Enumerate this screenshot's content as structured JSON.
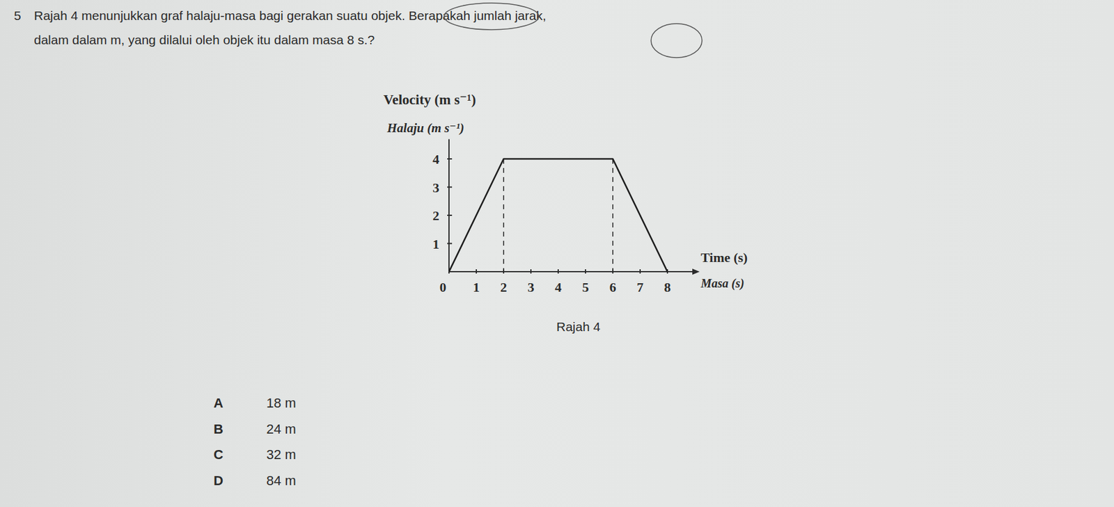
{
  "question": {
    "number": "5",
    "lines": [
      "Rajah 4 menunjukkan graf halaju-masa bagi gerakan suatu objek. Berapakah jumlah jarak,",
      "dalam dalam m, yang dilalui oleh objek itu dalam masa 8 s.?"
    ]
  },
  "chart_data": {
    "type": "line",
    "ylabel": "Velocity (m s⁻¹)",
    "ylabel_alt": "Halaju (m s⁻¹)",
    "xlabel": "Time (s)",
    "xlabel_alt": "Masa (s)",
    "x": [
      0,
      2,
      6,
      8
    ],
    "values": [
      0,
      4,
      4,
      0
    ],
    "xlim": [
      0,
      9
    ],
    "ylim": [
      0,
      4.7
    ],
    "xticks": [
      0,
      1,
      2,
      3,
      4,
      5,
      6,
      7,
      8
    ],
    "yticks": [
      1,
      2,
      3,
      4
    ],
    "color": "#1e1e1e",
    "grid": false
  },
  "caption": "Rajah 4",
  "options": [
    {
      "letter": "A",
      "text": "18 m"
    },
    {
      "letter": "B",
      "text": "24 m"
    },
    {
      "letter": "C",
      "text": "32 m"
    },
    {
      "letter": "D",
      "text": "84 m"
    }
  ]
}
